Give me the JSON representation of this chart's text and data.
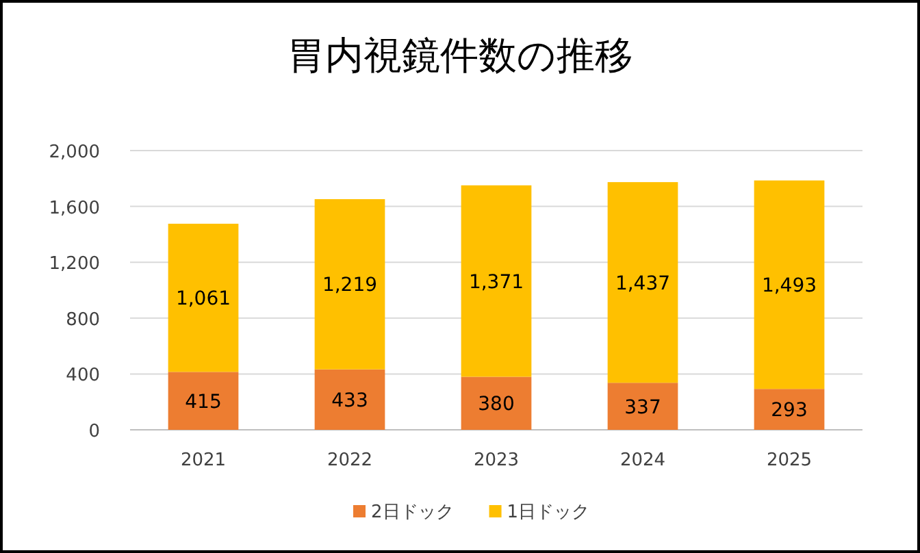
{
  "chart_data": {
    "type": "bar",
    "title": "胃内視鏡件数の推移",
    "categories": [
      "2021",
      "2022",
      "2023",
      "2024",
      "2025"
    ],
    "stacked": true,
    "series": [
      {
        "name": "2日ドック",
        "color": "#ed7d31",
        "values": [
          415,
          433,
          380,
          337,
          293
        ],
        "value_labels": [
          "415",
          "433",
          "380",
          "337",
          "293"
        ]
      },
      {
        "name": "1日ドック",
        "color": "#ffc000",
        "values": [
          1061,
          1219,
          1371,
          1437,
          1493
        ],
        "value_labels": [
          "1,061",
          "1,219",
          "1,371",
          "1,437",
          "1,493"
        ]
      }
    ],
    "ylim": [
      0,
      2000
    ],
    "yticks": [
      0,
      400,
      800,
      {
        "value": 1200,
        "label": "1,200"
      },
      {
        "value": 1600,
        "label": "1,600"
      },
      {
        "value": 2000,
        "label": "2,000"
      }
    ],
    "grid": "y",
    "legend": "bottom"
  }
}
